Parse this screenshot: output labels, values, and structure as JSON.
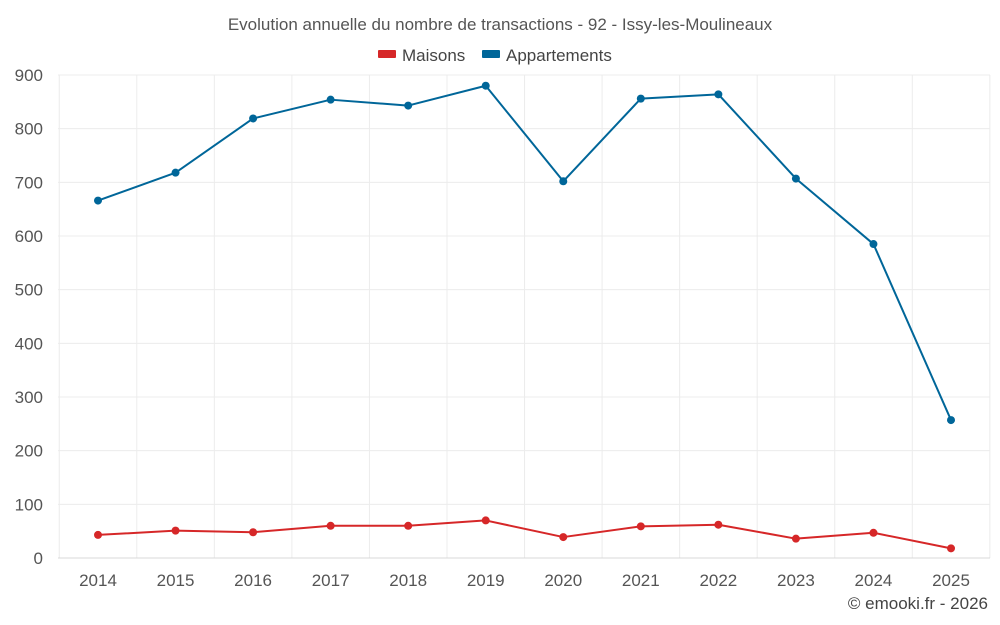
{
  "colors": {
    "maisons": "#d62728",
    "appartements": "#006699"
  },
  "chart_data": {
    "type": "line",
    "title": "Evolution annuelle du nombre de transactions - 92 - Issy-les-Moulineaux",
    "categories": [
      "2014",
      "2015",
      "2016",
      "2017",
      "2018",
      "2019",
      "2020",
      "2021",
      "2022",
      "2023",
      "2024",
      "2025"
    ],
    "ylim": [
      0,
      900
    ],
    "yticks": [
      "0",
      "100",
      "200",
      "300",
      "400",
      "500",
      "600",
      "700",
      "800",
      "900"
    ],
    "grid": true,
    "legend": "top-center",
    "xlabel": "",
    "ylabel": "",
    "series": [
      {
        "name": "Maisons",
        "color": "#d62728",
        "values": [
          43,
          51,
          48,
          60,
          60,
          70,
          39,
          59,
          62,
          36,
          47,
          18
        ]
      },
      {
        "name": "Appartements",
        "color": "#006699",
        "values": [
          666,
          718,
          819,
          854,
          843,
          880,
          702,
          856,
          864,
          707,
          585,
          257
        ]
      }
    ]
  },
  "footer": {
    "credit": "© emooki.fr - 2026"
  }
}
